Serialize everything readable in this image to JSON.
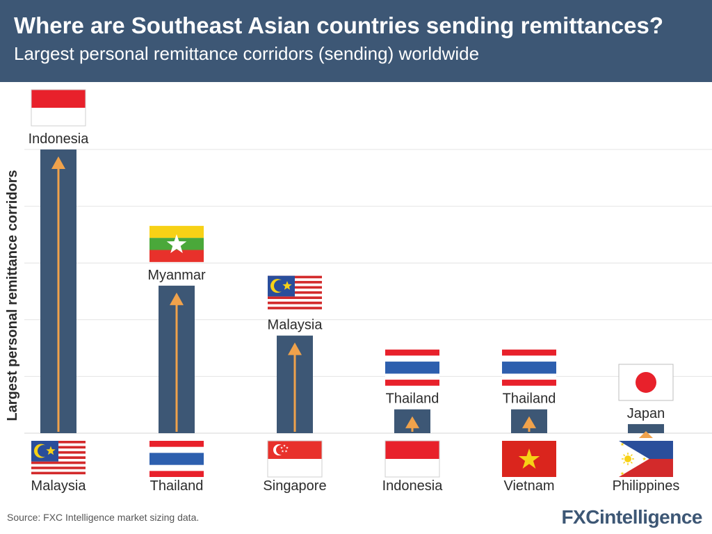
{
  "header": {
    "title": "Where are Southeast Asian countries sending remittances?",
    "subtitle": "Largest personal remittance corridors (sending) worldwide"
  },
  "footer": {
    "source": "Source: FXC Intelligence market sizing data.",
    "brand": "FXCintelligence"
  },
  "colors": {
    "header_bg": "#3d5775",
    "bar": "#3d5775",
    "arrow": "#f0a24b",
    "grid": "#e4e4e4"
  },
  "chart_data": {
    "type": "bar",
    "title": "",
    "xlabel": "",
    "ylabel": "Largest personal remittance corridors",
    "ylim": [
      0,
      5
    ],
    "grid": true,
    "categories": [
      "Malaysia",
      "Thailand",
      "Singapore",
      "Indonesia",
      "Vietnam",
      "Philippines"
    ],
    "destinations": [
      "Indonesia",
      "Myanmar",
      "Malaysia",
      "Thailand",
      "Thailand",
      "Japan"
    ],
    "values": [
      5.0,
      2.6,
      1.72,
      0.42,
      0.42,
      0.16
    ],
    "origin_flags": [
      "malaysia-flag-icon",
      "thailand-flag-icon",
      "singapore-flag-icon",
      "indonesia-flag-icon",
      "vietnam-flag-icon",
      "philippines-flag-icon"
    ],
    "destination_flags": [
      "indonesia-flag-icon",
      "myanmar-flag-icon",
      "malaysia-flag-icon",
      "thailand-flag-icon",
      "thailand-flag-icon",
      "japan-flag-icon"
    ]
  }
}
